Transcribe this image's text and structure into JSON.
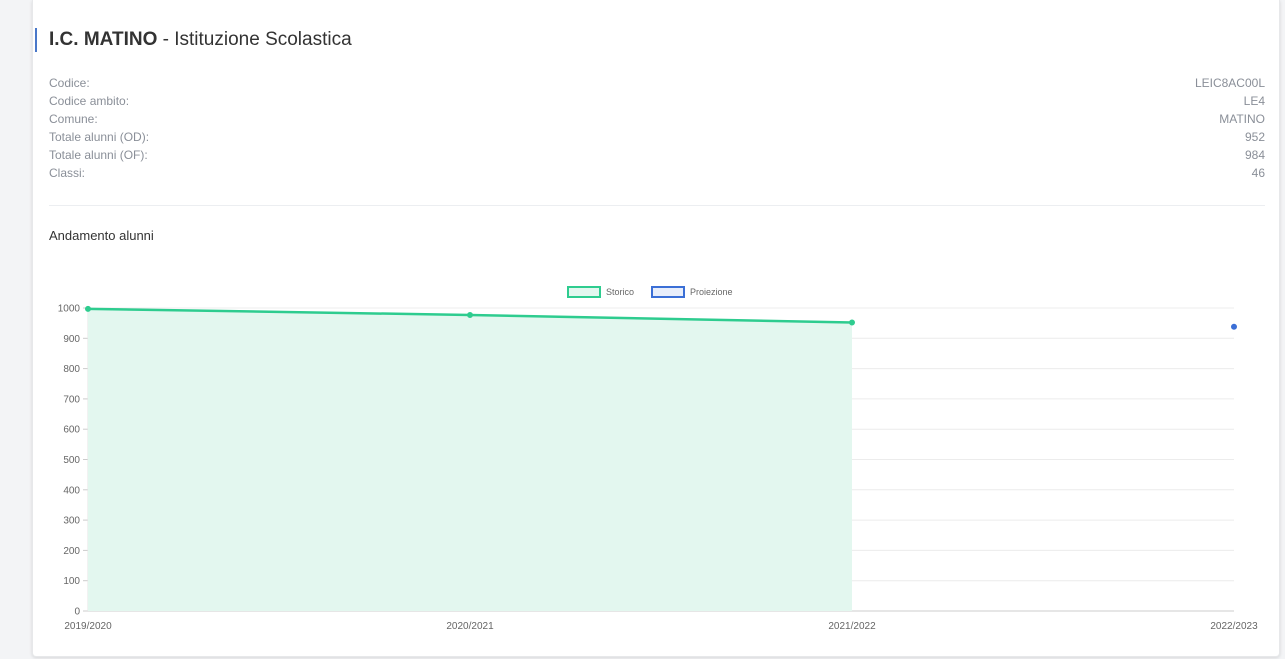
{
  "header": {
    "code_bold": "I.C. MATINO",
    "subtitle": " - Istituzione Scolastica"
  },
  "info": [
    {
      "label": "Codice:",
      "value": "LEIC8AC00L"
    },
    {
      "label": "Codice ambito:",
      "value": "LE4"
    },
    {
      "label": "Comune:",
      "value": "MATINO"
    },
    {
      "label": "Totale alunni (OD):",
      "value": "952"
    },
    {
      "label": "Totale alunni (OF):",
      "value": "984"
    },
    {
      "label": "Classi:",
      "value": "46"
    }
  ],
  "section_title": "Andamento alunni",
  "chart_data": {
    "type": "line",
    "categories": [
      "2019/2020",
      "2020/2021",
      "2021/2022",
      "2022/2023"
    ],
    "ylim": [
      0,
      1000
    ],
    "yticks": [
      0,
      100,
      200,
      300,
      400,
      500,
      600,
      700,
      800,
      900,
      1000
    ],
    "grid": true,
    "legend": "top",
    "series": [
      {
        "name": "Storico",
        "color": "#2ecc8f",
        "fill": "#e3f7ef",
        "values": [
          997,
          977,
          952,
          null
        ]
      },
      {
        "name": "Proiezione",
        "color": "#3b6fd6",
        "values": [
          null,
          null,
          null,
          938
        ]
      }
    ]
  }
}
